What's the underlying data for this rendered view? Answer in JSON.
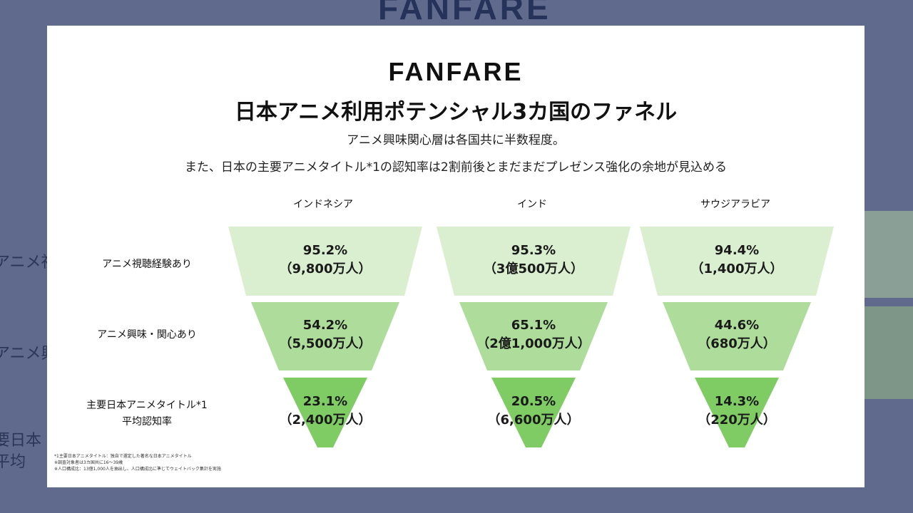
{
  "logo": "FANFARE",
  "title": "日本アニメ利用ポテンシャル3カ国のファネル",
  "subtitle_line1": "アニメ興味関心層は各国共に半数程度。",
  "subtitle_line2": "また、日本の主要アニメタイトル*1の認知率は2割前後とまだまだプレゼンス強化の余地が見込める",
  "row_labels": [
    "アニメ視聴経験あり",
    "アニメ興味・関心あり",
    "主要日本アニメタイトル*1",
    "平均認知率"
  ],
  "background_echo": [
    "アニメ視",
    "アニメ興",
    "要日本",
    "平均"
  ],
  "countries": [
    {
      "name": "インドネシア",
      "levels": [
        {
          "pct": "95.2%",
          "count": "（9,800万人）"
        },
        {
          "pct": "54.2%",
          "count": "（5,500万人）"
        },
        {
          "pct": "23.1%",
          "count": "（2,400万人）"
        }
      ]
    },
    {
      "name": "インド",
      "levels": [
        {
          "pct": "95.3%",
          "count": "（3億500万人）"
        },
        {
          "pct": "65.1%",
          "count": "（2億1,000万人）"
        },
        {
          "pct": "20.5%",
          "count": "（6,600万人）"
        }
      ]
    },
    {
      "name": "サウジアラビア",
      "levels": [
        {
          "pct": "94.4%",
          "count": "（1,400万人）"
        },
        {
          "pct": "44.6%",
          "count": "（680万人）"
        },
        {
          "pct": "14.3%",
          "count": "（220万人）"
        }
      ]
    }
  ],
  "footnotes": [
    "*1主要日本アニメタイトル：独自で選定した著名な日本アニメタイトル",
    "※調査対象者は3カ国共に16〜39歳",
    "※人口構成比：13億1,000人を抽出し、人口構成比に準じてウェイトバック集計を実施"
  ],
  "colors": {
    "level1": "#d9efcf",
    "level2": "#aedd9b",
    "level3": "#7fcb64",
    "background": "#5f6a8d"
  }
}
